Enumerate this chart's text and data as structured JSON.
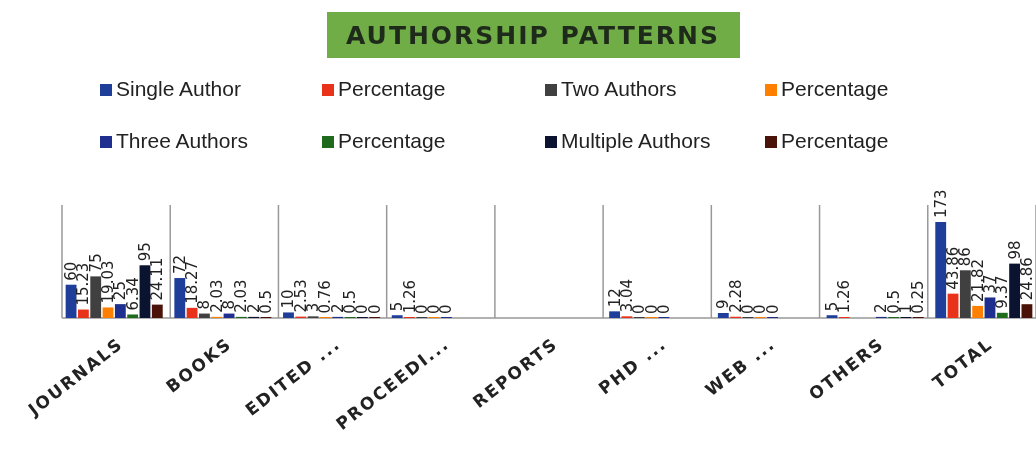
{
  "chart_data": {
    "type": "bar",
    "title": "AUTHORSHIP PATTERNS",
    "categories": [
      "JOURNALS",
      "BOOKS",
      "EDITED ...",
      "PROCEEDI...",
      "REPORTS",
      "PHD ...",
      "WEB ...",
      "OTHERS",
      "TOTAL"
    ],
    "series": [
      {
        "name": "Single Author",
        "color": "#1f3e99",
        "values": [
          60,
          72,
          10,
          5,
          null,
          12,
          9,
          5,
          173
        ]
      },
      {
        "name": "Percentage",
        "color": "#e8321a",
        "values": [
          15.23,
          18.27,
          2.53,
          1.26,
          null,
          3.04,
          2.28,
          1.26,
          43.86
        ]
      },
      {
        "name": "Two Authors",
        "color": "#404040",
        "values": [
          75,
          8,
          3,
          0,
          null,
          0,
          0,
          null,
          86
        ]
      },
      {
        "name": "Percentage",
        "color": "#ff7f00",
        "values": [
          19.03,
          2.03,
          0.76,
          0,
          null,
          0,
          0,
          null,
          21.82
        ]
      },
      {
        "name": "Three Authors",
        "color": "#1f2f8f",
        "values": [
          25,
          8,
          2,
          0,
          null,
          0,
          0,
          2,
          37
        ]
      },
      {
        "name": "Percentage",
        "color": "#1e6b1e",
        "values": [
          6.34,
          2.03,
          0.5,
          null,
          null,
          null,
          null,
          0.5,
          9.37
        ]
      },
      {
        "name": "Multiple Authors",
        "color": "#0a1330",
        "values": [
          95,
          2,
          0,
          null,
          null,
          null,
          null,
          1,
          98
        ]
      },
      {
        "name": "Percentage",
        "color": "#4a1208",
        "values": [
          24.11,
          0.5,
          0,
          null,
          null,
          null,
          null,
          0.25,
          24.86
        ]
      }
    ],
    "data_labels": true,
    "legend": "top"
  }
}
